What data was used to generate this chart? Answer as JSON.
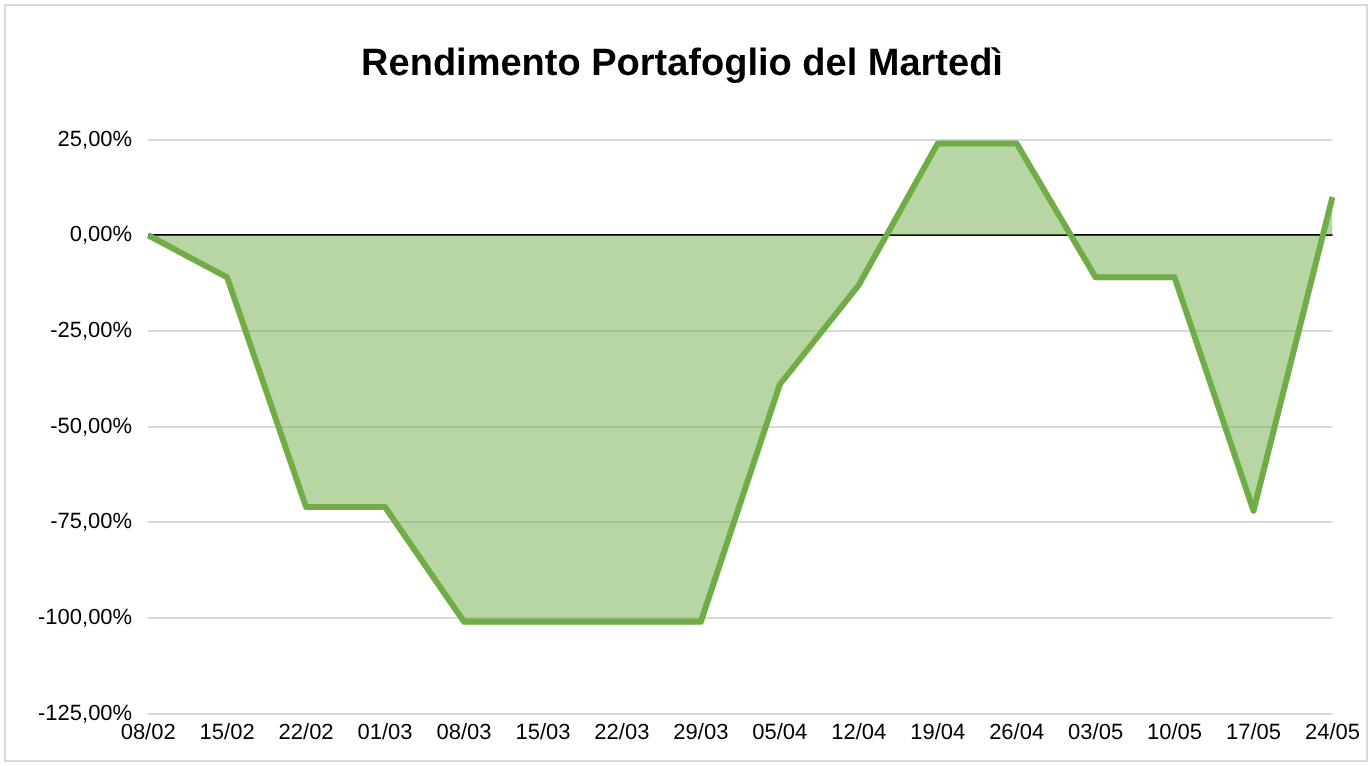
{
  "chart_data": {
    "type": "area",
    "title": "Rendimento Portafoglio del Martedì",
    "categories": [
      "08/02",
      "15/02",
      "22/02",
      "01/03",
      "08/03",
      "15/03",
      "22/03",
      "29/03",
      "05/04",
      "12/04",
      "19/04",
      "26/04",
      "03/05",
      "10/05",
      "17/05",
      "24/05"
    ],
    "series": [
      {
        "color": "#70ad47",
        "values": [
          0,
          -11,
          -71,
          -71,
          -101,
          -101,
          -101,
          -101,
          -39,
          -13,
          24,
          24,
          -11,
          -11,
          -72,
          10
        ]
      }
    ],
    "ylim": [
      -125,
      25
    ],
    "yticks": [
      {
        "value": -125,
        "label": "-125,00%"
      },
      {
        "value": -100,
        "label": "-100,00%"
      },
      {
        "value": -75,
        "label": "-75,00%"
      },
      {
        "value": -50,
        "label": "-50,00%"
      },
      {
        "value": -25,
        "label": "-25,00%"
      },
      {
        "value": 0,
        "label": "0,00%"
      },
      {
        "value": 25,
        "label": "25,00%"
      }
    ],
    "grid": "y",
    "legend": false
  }
}
